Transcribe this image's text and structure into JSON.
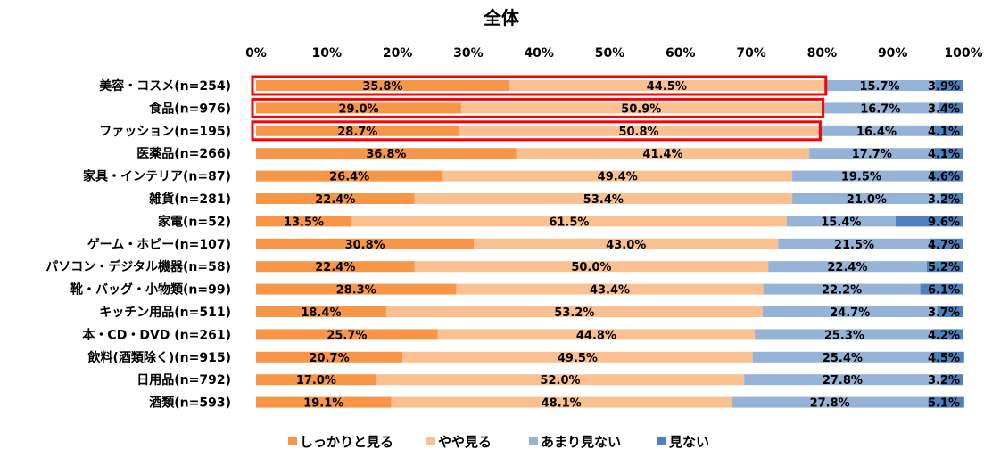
{
  "chart_data": {
    "type": "bar",
    "orientation": "horizontal",
    "stacked": true,
    "title": "全体",
    "x_tick_labels": [
      "0%",
      "10%",
      "20%",
      "30%",
      "40%",
      "50%",
      "60%",
      "70%",
      "80%",
      "90%",
      "100%"
    ],
    "xlim": [
      0,
      100
    ],
    "grid": false,
    "legend_position": "bottom",
    "categories": [
      "美容・コスメ(n=254)",
      "食品(n=976)",
      "ファッション(n=195)",
      "医薬品(n=266)",
      "家具・インテリア(n=87)",
      "雑貨(n=281)",
      "家電(n=52)",
      "ゲーム・ホビー(n=107)",
      "パソコン・デジタル機器(n=58)",
      "靴・バッグ・小物類(n=99)",
      "キッチン用品(n=511)",
      "本・CD・DVD (n=261)",
      "飲料(酒類除く)(n=915)",
      "日用品(n=792)",
      "酒類(n=593)"
    ],
    "series": [
      {
        "name": "しっかりと見る",
        "color": "#f79646",
        "values": [
          35.8,
          29.0,
          28.7,
          36.8,
          26.4,
          22.4,
          13.5,
          30.8,
          22.4,
          28.3,
          18.4,
          25.7,
          20.7,
          17.0,
          19.1
        ],
        "labels": [
          "35.8%",
          "29.0%",
          "28.7%",
          "36.8%",
          "26.4%",
          "22.4%",
          "13.5%",
          "30.8%",
          "22.4%",
          "28.3%",
          "18.4%",
          "25.7%",
          "20.7%",
          "17.0%",
          "19.1%"
        ]
      },
      {
        "name": "やや見る",
        "color": "#fac090",
        "values": [
          44.5,
          50.9,
          50.8,
          41.4,
          49.4,
          53.4,
          61.5,
          43.0,
          50.0,
          43.4,
          53.2,
          44.8,
          49.5,
          52.0,
          48.1
        ],
        "labels": [
          "44.5%",
          "50.9%",
          "50.8%",
          "41.4%",
          "49.4%",
          "53.4%",
          "61.5%",
          "43.0%",
          "50.0%",
          "43.4%",
          "53.2%",
          "44.8%",
          "49.5%",
          "52.0%",
          "48.1%"
        ]
      },
      {
        "name": "あまり見ない",
        "color": "#95b3d7",
        "values": [
          15.7,
          16.7,
          16.4,
          17.7,
          19.5,
          21.0,
          15.4,
          21.5,
          22.4,
          22.2,
          24.7,
          25.3,
          25.4,
          27.8,
          27.8
        ],
        "labels": [
          "15.7%",
          "16.7%",
          "16.4%",
          "17.7%",
          "19.5%",
          "21.0%",
          "15.4%",
          "21.5%",
          "22.4%",
          "22.2%",
          "24.7%",
          "25.3%",
          "25.4%",
          "27.8%",
          "27.8%"
        ]
      },
      {
        "name": "見ない",
        "color": "#4f81bd",
        "values": [
          3.9,
          3.4,
          4.1,
          4.1,
          4.6,
          3.2,
          9.6,
          4.7,
          5.2,
          6.1,
          3.7,
          4.2,
          4.5,
          3.2,
          5.1
        ],
        "labels": [
          "3.9%",
          "3.4%",
          "4.1%",
          "4.1%",
          "4.6%",
          "3.2%",
          "9.6%",
          "4.7%",
          "5.2%",
          "6.1%",
          "3.7%",
          "4.2%",
          "4.5%",
          "3.2%",
          "5.1%"
        ]
      }
    ],
    "highlighted_categories": [
      0,
      1,
      2
    ],
    "highlight_color": "#ff0000"
  }
}
